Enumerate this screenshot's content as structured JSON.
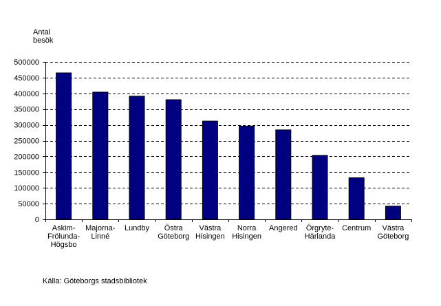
{
  "chart_data": {
    "type": "bar",
    "ylabel_lines": [
      "Antal",
      "besök"
    ],
    "xlabel": "",
    "ylim": [
      0,
      500000
    ],
    "yticks": [
      0,
      50000,
      100000,
      150000,
      200000,
      250000,
      300000,
      350000,
      400000,
      450000,
      500000
    ],
    "ytick_labels": [
      "0",
      "50000",
      "100000",
      "150000",
      "200000",
      "250000",
      "300000",
      "350000",
      "400000",
      "450000",
      "500000"
    ],
    "categories": [
      [
        "Askim-",
        "Frölunda-",
        "Högsbo"
      ],
      [
        "Majorna-",
        "Linné"
      ],
      [
        "Lundby"
      ],
      [
        "Östra",
        "Göteborg"
      ],
      [
        "Västra",
        "Hisingen"
      ],
      [
        "Norra",
        "Hisingen"
      ],
      [
        "Angered"
      ],
      [
        "Örgryte-",
        "Härlanda"
      ],
      [
        "Centrum"
      ],
      [
        "Västra",
        "Göteborg"
      ]
    ],
    "values": [
      465000,
      404000,
      391000,
      380000,
      312000,
      296000,
      284000,
      203000,
      132000,
      42000
    ],
    "bar_color": "#000080",
    "grid": true,
    "grid_style": "dashed"
  },
  "source_note": "Källa:  Göteborgs stadsbibliotek"
}
